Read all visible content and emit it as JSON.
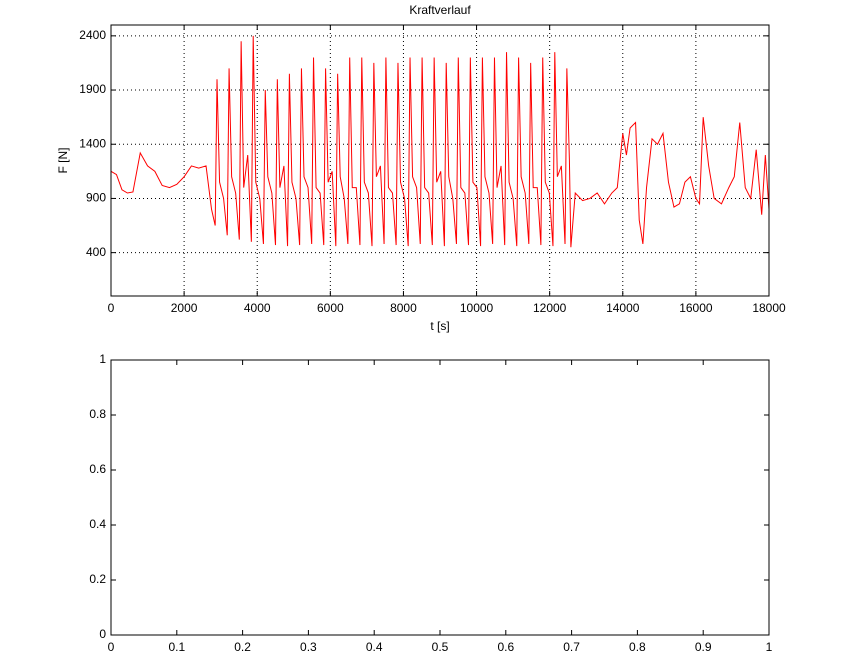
{
  "chart_data": [
    {
      "type": "line",
      "title": "Kraftverlauf",
      "xlabel": "t [s]",
      "ylabel": "F [N]",
      "xlim": [
        0,
        18000
      ],
      "ylim": [
        0,
        2500
      ],
      "xticks": [
        0,
        2000,
        4000,
        6000,
        8000,
        10000,
        12000,
        14000,
        16000,
        18000
      ],
      "yticks": [
        400,
        900,
        1400,
        1900,
        2400
      ],
      "grid": true,
      "x": [
        0,
        150,
        300,
        450,
        600,
        800,
        1000,
        1200,
        1400,
        1600,
        1800,
        2000,
        2200,
        2400,
        2600,
        2750,
        2850,
        2900,
        2970,
        3080,
        3180,
        3230,
        3300,
        3410,
        3510,
        3560,
        3630,
        3740,
        3840,
        3890,
        3960,
        4070,
        4170,
        4220,
        4290,
        4400,
        4500,
        4550,
        4620,
        4730,
        4830,
        4880,
        4950,
        5060,
        5160,
        5210,
        5280,
        5390,
        5490,
        5540,
        5610,
        5720,
        5820,
        5870,
        5940,
        6050,
        6150,
        6200,
        6270,
        6380,
        6480,
        6530,
        6600,
        6710,
        6810,
        6860,
        6930,
        7040,
        7140,
        7190,
        7260,
        7370,
        7470,
        7520,
        7590,
        7700,
        7800,
        7850,
        7920,
        8030,
        8130,
        8180,
        8250,
        8360,
        8460,
        8510,
        8580,
        8690,
        8790,
        8840,
        8910,
        9020,
        9120,
        9170,
        9240,
        9350,
        9450,
        9500,
        9570,
        9680,
        9780,
        9830,
        9900,
        10010,
        10110,
        10160,
        10230,
        10340,
        10440,
        10490,
        10560,
        10670,
        10770,
        10820,
        10890,
        11000,
        11100,
        11150,
        11220,
        11330,
        11430,
        11480,
        11550,
        11660,
        11760,
        11810,
        11880,
        11990,
        12090,
        12140,
        12210,
        12320,
        12420,
        12470,
        12540,
        12580,
        12700,
        12900,
        13100,
        13300,
        13500,
        13700,
        13850,
        14000,
        14100,
        14200,
        14350,
        14450,
        14550,
        14650,
        14800,
        14950,
        15100,
        15250,
        15400,
        15550,
        15700,
        15850,
        16000,
        16100,
        16200,
        16350,
        16500,
        16700,
        16900,
        17050,
        17200,
        17350,
        17500,
        17650,
        17800,
        17900,
        18000
      ],
      "series": [
        {
          "color": "#ff0000",
          "values": [
            1150,
            1120,
            980,
            950,
            960,
            1320,
            1200,
            1150,
            1020,
            1000,
            1030,
            1100,
            1200,
            1180,
            1200,
            800,
            650,
            2000,
            1050,
            900,
            560,
            2100,
            1100,
            950,
            520,
            2350,
            1000,
            1300,
            500,
            2400,
            1050,
            900,
            480,
            1900,
            1100,
            950,
            470,
            2000,
            1000,
            1200,
            460,
            2050,
            1050,
            900,
            470,
            2100,
            1100,
            1000,
            480,
            2200,
            1000,
            950,
            470,
            2100,
            1050,
            1150,
            460,
            2050,
            1100,
            900,
            480,
            2200,
            1000,
            1000,
            470,
            2200,
            1050,
            950,
            460,
            2150,
            1100,
            1200,
            480,
            2200,
            1000,
            950,
            470,
            2150,
            1050,
            900,
            460,
            2200,
            1100,
            1000,
            480,
            2200,
            1000,
            950,
            470,
            2200,
            1050,
            1150,
            460,
            2150,
            1100,
            900,
            480,
            2200,
            1000,
            950,
            470,
            2200,
            1050,
            1000,
            460,
            2200,
            1100,
            950,
            480,
            2200,
            1000,
            1200,
            470,
            2250,
            1050,
            900,
            460,
            2200,
            1100,
            950,
            480,
            2150,
            1000,
            1000,
            470,
            2200,
            1050,
            950,
            460,
            2250,
            1100,
            1200,
            480,
            2100,
            1250,
            450,
            950,
            880,
            900,
            950,
            850,
            950,
            1000,
            1500,
            1300,
            1550,
            1600,
            700,
            480,
            1000,
            1450,
            1400,
            1500,
            1050,
            820,
            850,
            1050,
            1100,
            900,
            850,
            1650,
            1200,
            900,
            850,
            1000,
            1100,
            1600,
            1000,
            900,
            1350,
            750,
            1300,
            800
          ]
        }
      ]
    },
    {
      "type": "line",
      "xlim": [
        0,
        1
      ],
      "ylim": [
        0,
        1
      ],
      "xticks": [
        0,
        0.1,
        0.2,
        0.3,
        0.4,
        0.5,
        0.6,
        0.7,
        0.8,
        0.9,
        1
      ],
      "yticks": [
        0,
        0.2,
        0.4,
        0.6,
        0.8,
        1
      ],
      "grid": false
    }
  ]
}
